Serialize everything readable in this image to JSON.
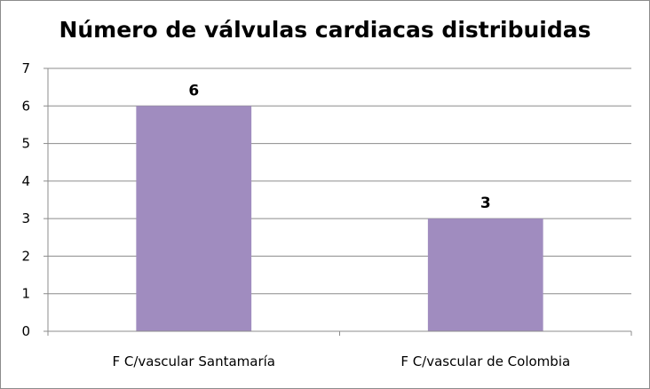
{
  "chart_data": {
    "type": "bar",
    "title": "Número de válvulas cardiacas distribuidas",
    "categories": [
      "F C/vascular Santamaría",
      "F C/vascular de Colombia"
    ],
    "values": [
      6,
      3
    ],
    "data_labels": [
      "6",
      "3"
    ],
    "xlabel": "",
    "ylabel": "",
    "ylim": [
      0,
      7
    ],
    "yticks": [
      0,
      1,
      2,
      3,
      4,
      5,
      6,
      7
    ],
    "grid": true,
    "legend": "none",
    "bar_color": "#a08cbf"
  }
}
